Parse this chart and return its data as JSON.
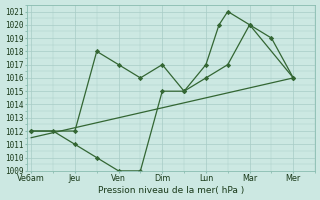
{
  "background_color": "#cce8e2",
  "grid_color": "#a8ccc6",
  "line_color": "#336633",
  "xlabel": "Pression niveau de la mer( hPa )",
  "ylim": [
    1009,
    1021.5
  ],
  "ytick_min": 1009,
  "ytick_max": 1021,
  "x_labels": [
    "Ve6am",
    "Jeu",
    "Ven",
    "Dim",
    "Lun",
    "Mar",
    "Mer"
  ],
  "x_positions": [
    0,
    1,
    2,
    3,
    4,
    5,
    6
  ],
  "xlim": [
    -0.1,
    6.5
  ],
  "line1_x": [
    0,
    0.5,
    1,
    1.5,
    2,
    2.5,
    3,
    3.5,
    4,
    4.5,
    5,
    6
  ],
  "line1_y": [
    1012,
    1012,
    1011,
    1010,
    1009,
    1009,
    1015,
    1015,
    1016,
    1017,
    1020,
    1016
  ],
  "line2_x": [
    0,
    1,
    1.5,
    2,
    2.5,
    3,
    3.5,
    4,
    4.3,
    4.5,
    5,
    5.5,
    6
  ],
  "line2_y": [
    1012,
    1012,
    1018,
    1017,
    1016,
    1017,
    1015,
    1017,
    1020,
    1021,
    1020,
    1019,
    1016
  ],
  "line3_x": [
    0,
    6
  ],
  "line3_y": [
    1011.5,
    1016
  ]
}
